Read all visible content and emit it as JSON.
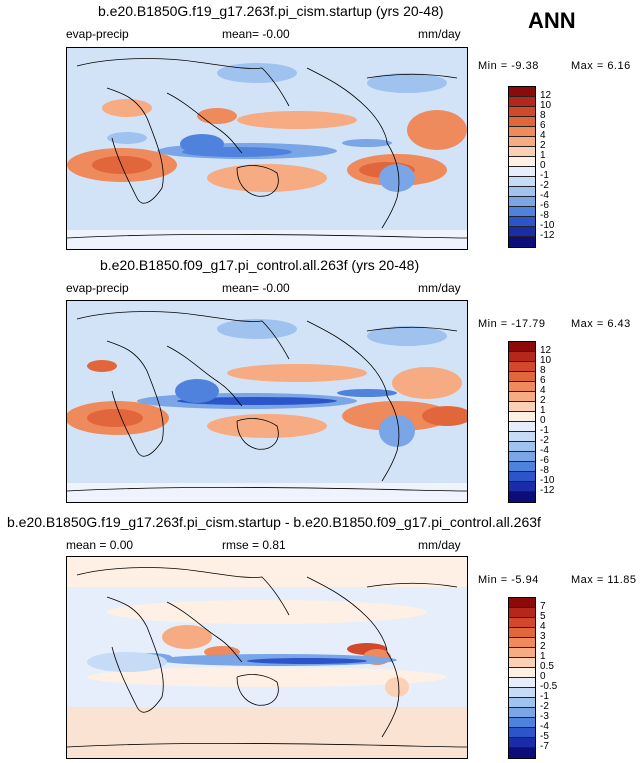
{
  "season": "ANN",
  "chart_data": [
    {
      "type": "heatmap",
      "title": "b.e20.B1850G.f19_g17.263f.pi_cism.startup (yrs 20-48)",
      "left_label": "evap-precip",
      "center_label": "mean=   -0.00",
      "units": "mm/day",
      "min_label": "Min =  -9.38",
      "max_label": "Max =    6.16",
      "min": -9.38,
      "max": 6.16,
      "levels": [
        "12",
        "10",
        "8",
        "6",
        "4",
        "2",
        "1",
        "0",
        "-1",
        "-2",
        "-4",
        "-6",
        "-8",
        "-10",
        "-12"
      ],
      "colors": [
        "#8b0a0a",
        "#b5261b",
        "#d2482b",
        "#e2663c",
        "#ef8a5c",
        "#f6ab82",
        "#fbd0b4",
        "#fef0e4",
        "#e6eefc",
        "#c6dbf5",
        "#a0c2ee",
        "#7aa5e7",
        "#4e82dd",
        "#2b55c9",
        "#1a2ca6",
        "#0c0c7a"
      ]
    },
    {
      "type": "heatmap",
      "title": "b.e20.B1850.f09_g17.pi_control.all.263f (yrs 20-48)",
      "left_label": "evap-precip",
      "center_label": "mean=   -0.00",
      "units": "mm/day",
      "min_label": "Min = -17.79",
      "max_label": "Max =    6.43",
      "min": -17.79,
      "max": 6.43,
      "levels": [
        "12",
        "10",
        "8",
        "6",
        "4",
        "2",
        "1",
        "0",
        "-1",
        "-2",
        "-4",
        "-6",
        "-8",
        "-10",
        "-12"
      ],
      "colors": [
        "#8b0a0a",
        "#b5261b",
        "#d2482b",
        "#e2663c",
        "#ef8a5c",
        "#f6ab82",
        "#fbd0b4",
        "#fef0e4",
        "#e6eefc",
        "#c6dbf5",
        "#a0c2ee",
        "#7aa5e7",
        "#4e82dd",
        "#2b55c9",
        "#1a2ca6",
        "#0c0c7a"
      ]
    },
    {
      "type": "heatmap",
      "title": "b.e20.B1850G.f19_g17.263f.pi_cism.startup - b.e20.B1850.f09_g17.pi_control.all.263f",
      "left_label": "mean =    0.00",
      "center_label": "rmse =    0.81",
      "units": "mm/day",
      "min_label": "Min =  -5.94",
      "max_label": "Max =   11.85",
      "min": -5.94,
      "max": 11.85,
      "levels": [
        "7",
        "5",
        "4",
        "3",
        "2",
        "1",
        "0.5",
        "0",
        "-0.5",
        "-1",
        "-2",
        "-3",
        "-4",
        "-5",
        "-7"
      ],
      "colors": [
        "#8b0a0a",
        "#b5261b",
        "#d2482b",
        "#e2663c",
        "#ef8a5c",
        "#f6ab82",
        "#fbd0b4",
        "#fef0e4",
        "#e6eefc",
        "#c6dbf5",
        "#a0c2ee",
        "#7aa5e7",
        "#4e82dd",
        "#2b55c9",
        "#1a2ca6",
        "#0c0c7a"
      ]
    }
  ]
}
